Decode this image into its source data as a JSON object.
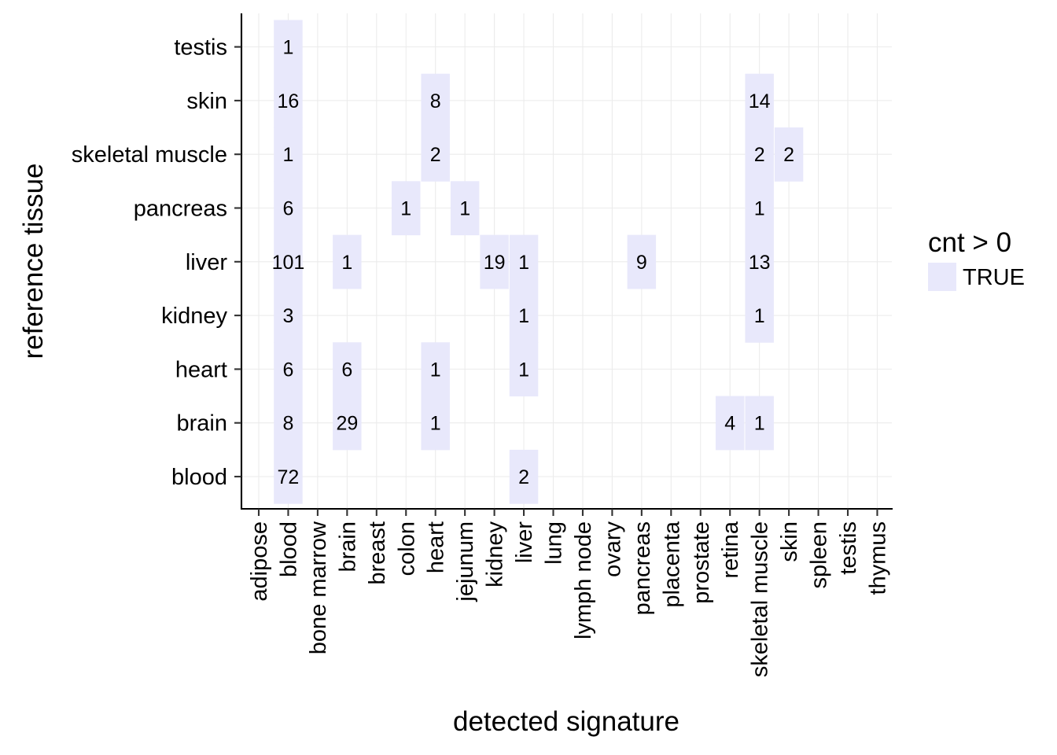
{
  "chart_data": {
    "type": "heatmap",
    "xlabel": "detected signature",
    "ylabel": "reference tissue",
    "x_categories": [
      "adipose",
      "blood",
      "bone marrow",
      "brain",
      "breast",
      "colon",
      "heart",
      "jejunum",
      "kidney",
      "liver",
      "lung",
      "lymph node",
      "ovary",
      "pancreas",
      "placenta",
      "prostate",
      "retina",
      "skeletal muscle",
      "skin",
      "spleen",
      "testis",
      "thymus"
    ],
    "y_categories": [
      "blood",
      "brain",
      "heart",
      "kidney",
      "liver",
      "pancreas",
      "skeletal muscle",
      "skin",
      "testis"
    ],
    "cells": [
      {
        "x": "blood",
        "y": "testis",
        "value": 1
      },
      {
        "x": "blood",
        "y": "skin",
        "value": 16
      },
      {
        "x": "heart",
        "y": "skin",
        "value": 8
      },
      {
        "x": "skeletal muscle",
        "y": "skin",
        "value": 14
      },
      {
        "x": "blood",
        "y": "skeletal muscle",
        "value": 1
      },
      {
        "x": "heart",
        "y": "skeletal muscle",
        "value": 2
      },
      {
        "x": "skeletal muscle",
        "y": "skeletal muscle",
        "value": 2
      },
      {
        "x": "skin",
        "y": "skeletal muscle",
        "value": 2
      },
      {
        "x": "blood",
        "y": "pancreas",
        "value": 6
      },
      {
        "x": "colon",
        "y": "pancreas",
        "value": 1
      },
      {
        "x": "jejunum",
        "y": "pancreas",
        "value": 1
      },
      {
        "x": "skeletal muscle",
        "y": "pancreas",
        "value": 1
      },
      {
        "x": "blood",
        "y": "liver",
        "value": 101
      },
      {
        "x": "brain",
        "y": "liver",
        "value": 1
      },
      {
        "x": "kidney",
        "y": "liver",
        "value": 19
      },
      {
        "x": "liver",
        "y": "liver",
        "value": 1
      },
      {
        "x": "pancreas",
        "y": "liver",
        "value": 9
      },
      {
        "x": "skeletal muscle",
        "y": "liver",
        "value": 13
      },
      {
        "x": "blood",
        "y": "kidney",
        "value": 3
      },
      {
        "x": "liver",
        "y": "kidney",
        "value": 1
      },
      {
        "x": "skeletal muscle",
        "y": "kidney",
        "value": 1
      },
      {
        "x": "blood",
        "y": "heart",
        "value": 6
      },
      {
        "x": "brain",
        "y": "heart",
        "value": 6
      },
      {
        "x": "heart",
        "y": "heart",
        "value": 1
      },
      {
        "x": "liver",
        "y": "heart",
        "value": 1
      },
      {
        "x": "blood",
        "y": "brain",
        "value": 8
      },
      {
        "x": "brain",
        "y": "brain",
        "value": 29
      },
      {
        "x": "heart",
        "y": "brain",
        "value": 1
      },
      {
        "x": "retina",
        "y": "brain",
        "value": 4
      },
      {
        "x": "skeletal muscle",
        "y": "brain",
        "value": 1
      },
      {
        "x": "blood",
        "y": "blood",
        "value": 72
      },
      {
        "x": "liver",
        "y": "blood",
        "value": 2
      }
    ],
    "fill_color": "#e8e8fb",
    "legend": {
      "title": "cnt > 0",
      "entries": [
        {
          "label": "TRUE",
          "color": "#e8e8fb"
        }
      ],
      "position": "right"
    },
    "grid": true
  }
}
